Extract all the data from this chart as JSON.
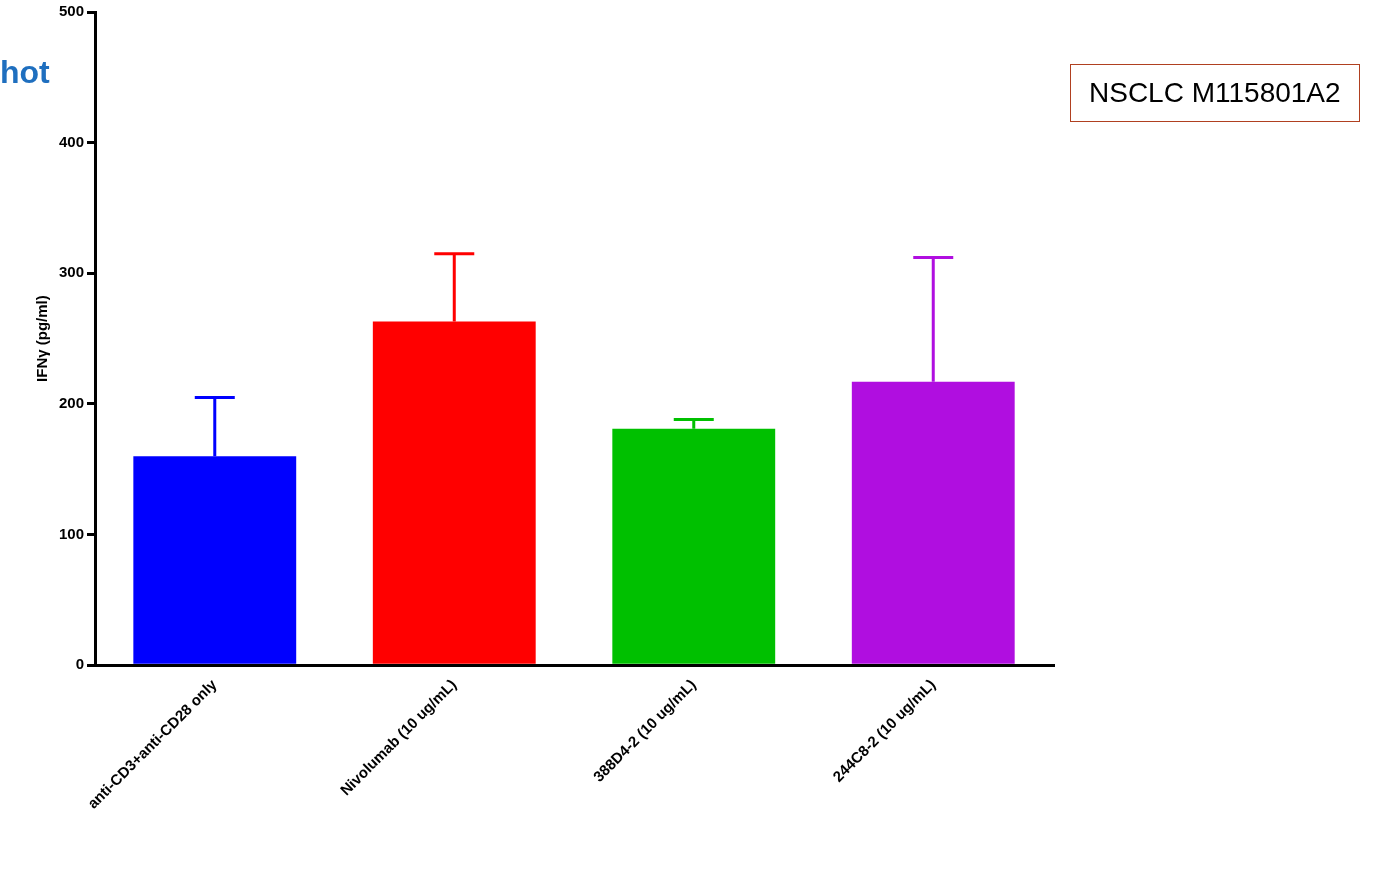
{
  "chart_data": {
    "type": "bar",
    "ylabel": "IFNγ (pg/ml)",
    "categories": [
      "anti-CD3+anti-CD28 only",
      "Nivolumab (10 ug/mL)",
      "388D4-2 (10 ug/mL)",
      "244C8-2 (10 ug/mL)"
    ],
    "values": [
      160,
      263,
      181,
      217
    ],
    "colors": [
      "#0000ff",
      "#ff0000",
      "#00c000",
      "#b00ee0"
    ],
    "errors": [
      [
        160,
        205
      ],
      [
        263,
        315
      ],
      [
        181,
        188
      ],
      [
        217,
        312
      ]
    ],
    "ylim": [
      0,
      500
    ],
    "yticks": [
      0,
      100,
      200,
      300,
      400,
      500
    ],
    "grid": false,
    "legend": false,
    "annotations": [
      "hot",
      "NSCLC M115801A2"
    ]
  }
}
